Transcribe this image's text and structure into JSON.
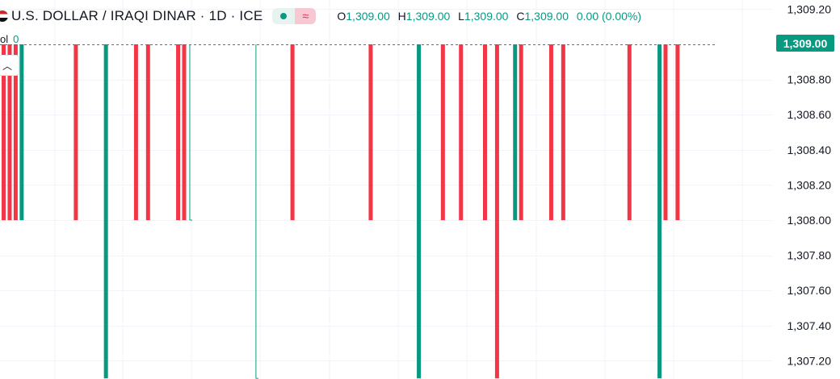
{
  "header": {
    "symbol": "U.S. DOLLAR / IRAQI DINAR · 1D · ICE",
    "ohlc": [
      {
        "key": "O",
        "value": "1,309.00"
      },
      {
        "key": "H",
        "value": "1,309.00"
      },
      {
        "key": "L",
        "value": "1,309.00"
      },
      {
        "key": "C",
        "value": "1,309.00"
      }
    ],
    "change": "0.00 (0.00%)",
    "volume_label": "ol",
    "volume_value": "0"
  },
  "collapse_icon": "chevron-up-icon",
  "current_price_label": "1,309.00",
  "colors": {
    "up": "#089981",
    "down": "#f23645",
    "grid": "#f0f3fa",
    "axis_text": "#131722",
    "background": "#ffffff"
  },
  "chart_data": {
    "type": "bar",
    "title": "U.S. DOLLAR / IRAQI DINAR · 1D · ICE",
    "xlabel": "",
    "ylabel": "",
    "ylim": [
      1307.1,
      1309.25
    ],
    "grid": true,
    "y_ticks": [
      "1,309.20",
      "1,308.80",
      "1,308.60",
      "1,308.40",
      "1,308.20",
      "1,308.00",
      "1,307.80",
      "1,307.60",
      "1,307.40",
      "1,307.20"
    ],
    "last_price": 1309.0,
    "bars": [
      {
        "i": 0,
        "low": 1308.0,
        "high": 1309.0,
        "dir": "down"
      },
      {
        "i": 1,
        "low": 1308.0,
        "high": 1309.0,
        "dir": "down"
      },
      {
        "i": 2,
        "low": 1308.0,
        "high": 1309.0,
        "dir": "down"
      },
      {
        "i": 3,
        "low": 1308.0,
        "high": 1309.0,
        "dir": "up"
      },
      {
        "i": 12,
        "low": 1308.0,
        "high": 1309.0,
        "dir": "down"
      },
      {
        "i": 17,
        "low": 1307.1,
        "high": 1309.0,
        "dir": "up"
      },
      {
        "i": 22,
        "low": 1308.0,
        "high": 1309.0,
        "dir": "down"
      },
      {
        "i": 24,
        "low": 1308.0,
        "high": 1309.0,
        "dir": "down"
      },
      {
        "i": 29,
        "low": 1308.0,
        "high": 1309.0,
        "dir": "down"
      },
      {
        "i": 30,
        "low": 1308.0,
        "high": 1309.0,
        "dir": "down"
      },
      {
        "i": 31,
        "low": 1308.0,
        "high": 1309.0,
        "dir": "flat"
      },
      {
        "i": 42,
        "low": 1307.1,
        "high": 1309.0,
        "dir": "flat"
      },
      {
        "i": 48,
        "low": 1308.0,
        "high": 1309.0,
        "dir": "down"
      },
      {
        "i": 61,
        "low": 1308.0,
        "high": 1309.0,
        "dir": "down"
      },
      {
        "i": 69,
        "low": 1307.1,
        "high": 1309.0,
        "dir": "up"
      },
      {
        "i": 73,
        "low": 1308.0,
        "high": 1309.0,
        "dir": "down"
      },
      {
        "i": 76,
        "low": 1308.0,
        "high": 1309.0,
        "dir": "down"
      },
      {
        "i": 80,
        "low": 1308.0,
        "high": 1309.0,
        "dir": "down"
      },
      {
        "i": 82,
        "low": 1307.1,
        "high": 1309.0,
        "dir": "down"
      },
      {
        "i": 85,
        "low": 1308.0,
        "high": 1309.0,
        "dir": "up"
      },
      {
        "i": 86,
        "low": 1308.0,
        "high": 1309.0,
        "dir": "down"
      },
      {
        "i": 91,
        "low": 1308.0,
        "high": 1309.0,
        "dir": "down"
      },
      {
        "i": 93,
        "low": 1308.0,
        "high": 1309.0,
        "dir": "down"
      },
      {
        "i": 104,
        "low": 1308.0,
        "high": 1309.0,
        "dir": "down"
      },
      {
        "i": 109,
        "low": 1307.1,
        "high": 1309.0,
        "dir": "up"
      },
      {
        "i": 110,
        "low": 1308.0,
        "high": 1309.0,
        "dir": "down"
      },
      {
        "i": 112,
        "low": 1308.0,
        "high": 1309.0,
        "dir": "down"
      }
    ]
  }
}
